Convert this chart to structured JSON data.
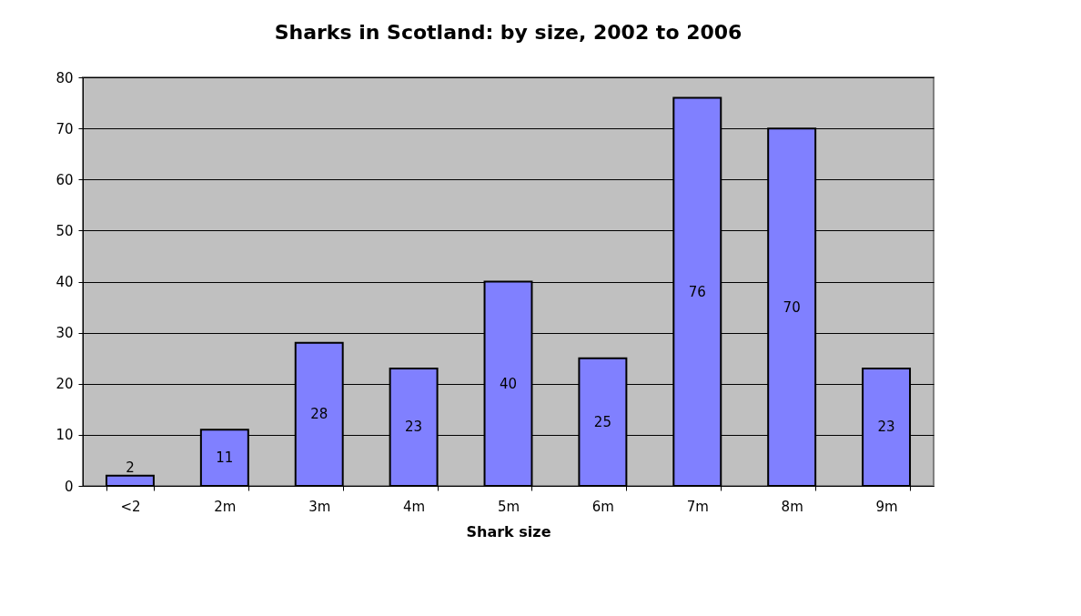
{
  "chart_data": {
    "type": "bar",
    "title": "Sharks in Scotland: by size, 2002 to 2006",
    "xlabel": "Shark size",
    "categories": [
      "<2",
      "2m",
      "3m",
      "4m",
      "5m",
      "6m",
      "7m",
      "8m",
      "9m"
    ],
    "values": [
      2,
      11,
      28,
      23,
      40,
      25,
      76,
      70,
      23
    ],
    "color": "#8080ff",
    "ylim": [
      0,
      80
    ],
    "yticks": [
      0,
      10,
      20,
      30,
      40,
      50,
      60,
      70,
      80
    ],
    "grid": "y",
    "data_labels": true
  }
}
